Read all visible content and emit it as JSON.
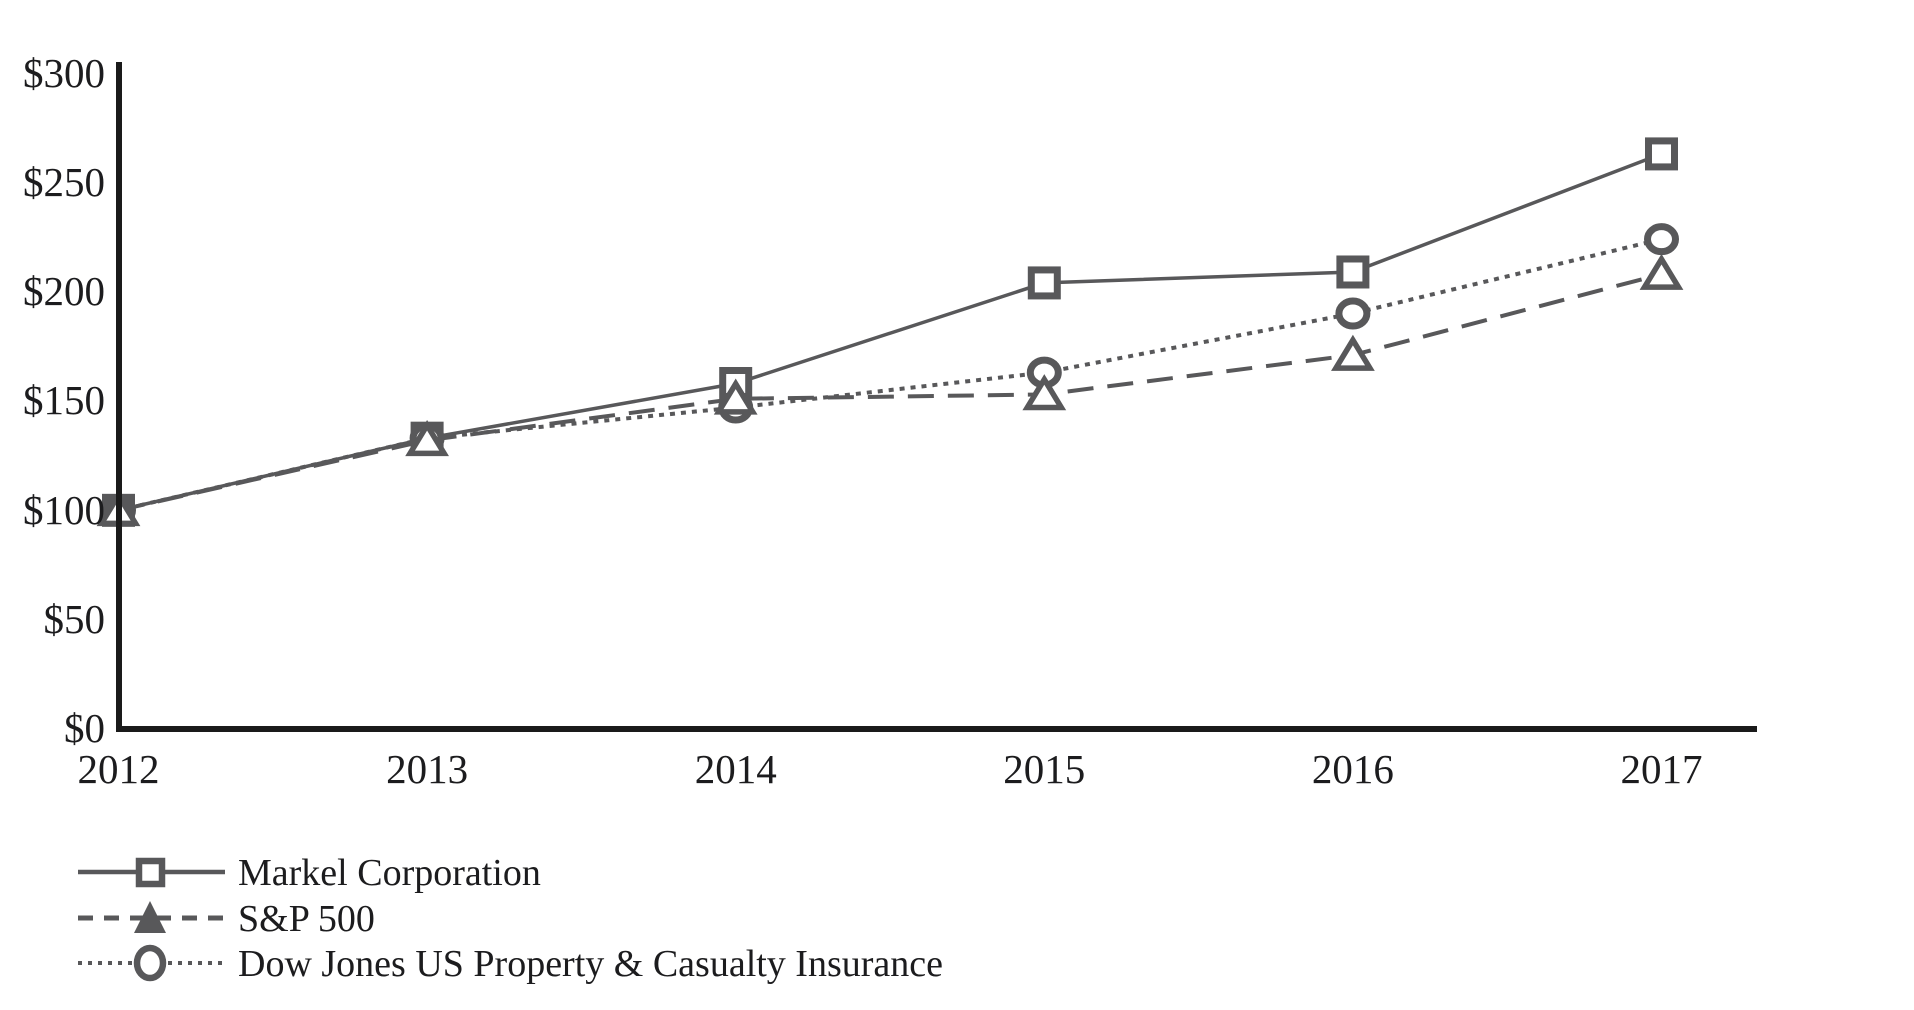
{
  "chart_data": {
    "type": "line",
    "title": "",
    "xlabel": "",
    "ylabel": "",
    "categories": [
      "2012",
      "2013",
      "2014",
      "2015",
      "2016",
      "2017"
    ],
    "y_ticks": [
      0,
      50,
      100,
      150,
      200,
      250,
      300
    ],
    "y_tick_labels": [
      "$0",
      "$50",
      "$100",
      "$150",
      "$200",
      "$250",
      "$300"
    ],
    "ylim": [
      0,
      300
    ],
    "grid": false,
    "legend_position": "bottom-left",
    "series": [
      {
        "name": "Markel Corporation",
        "marker": "square",
        "line_style": "solid",
        "values": [
          100,
          133,
          158,
          204,
          209,
          263
        ]
      },
      {
        "name": "S&P 500",
        "marker": "triangle",
        "line_style": "dashed",
        "values": [
          100,
          132,
          151,
          153,
          171,
          208
        ]
      },
      {
        "name": "Dow Jones US Property & Casualty Insurance",
        "marker": "circle",
        "line_style": "dotted",
        "values": [
          100,
          133,
          147,
          163,
          190,
          224
        ]
      }
    ],
    "colors": {
      "series": "#58585a",
      "axis": "#1a1a1a",
      "text": "#1c1c1e"
    }
  }
}
